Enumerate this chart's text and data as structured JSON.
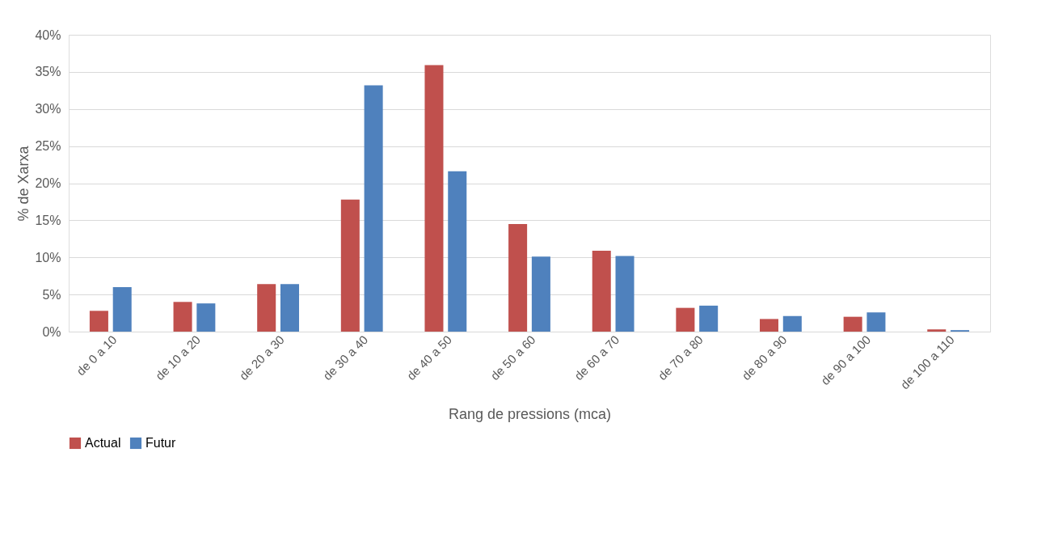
{
  "chart_data": {
    "type": "bar",
    "xlabel": "Rang de pressions (mca)",
    "ylabel": "% de Xarxa",
    "categories": [
      "de 0 a 10",
      "de 10 a 20",
      "de 20 a 30",
      "de 30 a 40",
      "de 40 a 50",
      "de 50 a 60",
      "de 60 a 70",
      "de 70 a 80",
      "de 80 a 90",
      "de 90 a 100",
      "de 100 a 110"
    ],
    "series": [
      {
        "name": "Actual",
        "color": "#c0504d",
        "values": [
          2.8,
          4.0,
          6.4,
          17.8,
          35.9,
          14.5,
          10.9,
          3.2,
          1.7,
          2.0,
          0.3
        ]
      },
      {
        "name": "Futur",
        "color": "#4f81bd",
        "values": [
          6.0,
          3.8,
          6.4,
          33.2,
          21.6,
          10.1,
          10.2,
          3.5,
          2.1,
          2.6,
          0.2
        ]
      }
    ],
    "ylim": [
      0,
      40
    ],
    "yticks": [
      {
        "value": 0,
        "label": "0%"
      },
      {
        "value": 5,
        "label": "5%"
      },
      {
        "value": 10,
        "label": "10%"
      },
      {
        "value": 15,
        "label": "15%"
      },
      {
        "value": 20,
        "label": "20%"
      },
      {
        "value": 25,
        "label": "25%"
      },
      {
        "value": 30,
        "label": "30%"
      },
      {
        "value": 35,
        "label": "35%"
      },
      {
        "value": 40,
        "label": "40%"
      }
    ],
    "grid": "y",
    "legend": "bottom"
  }
}
